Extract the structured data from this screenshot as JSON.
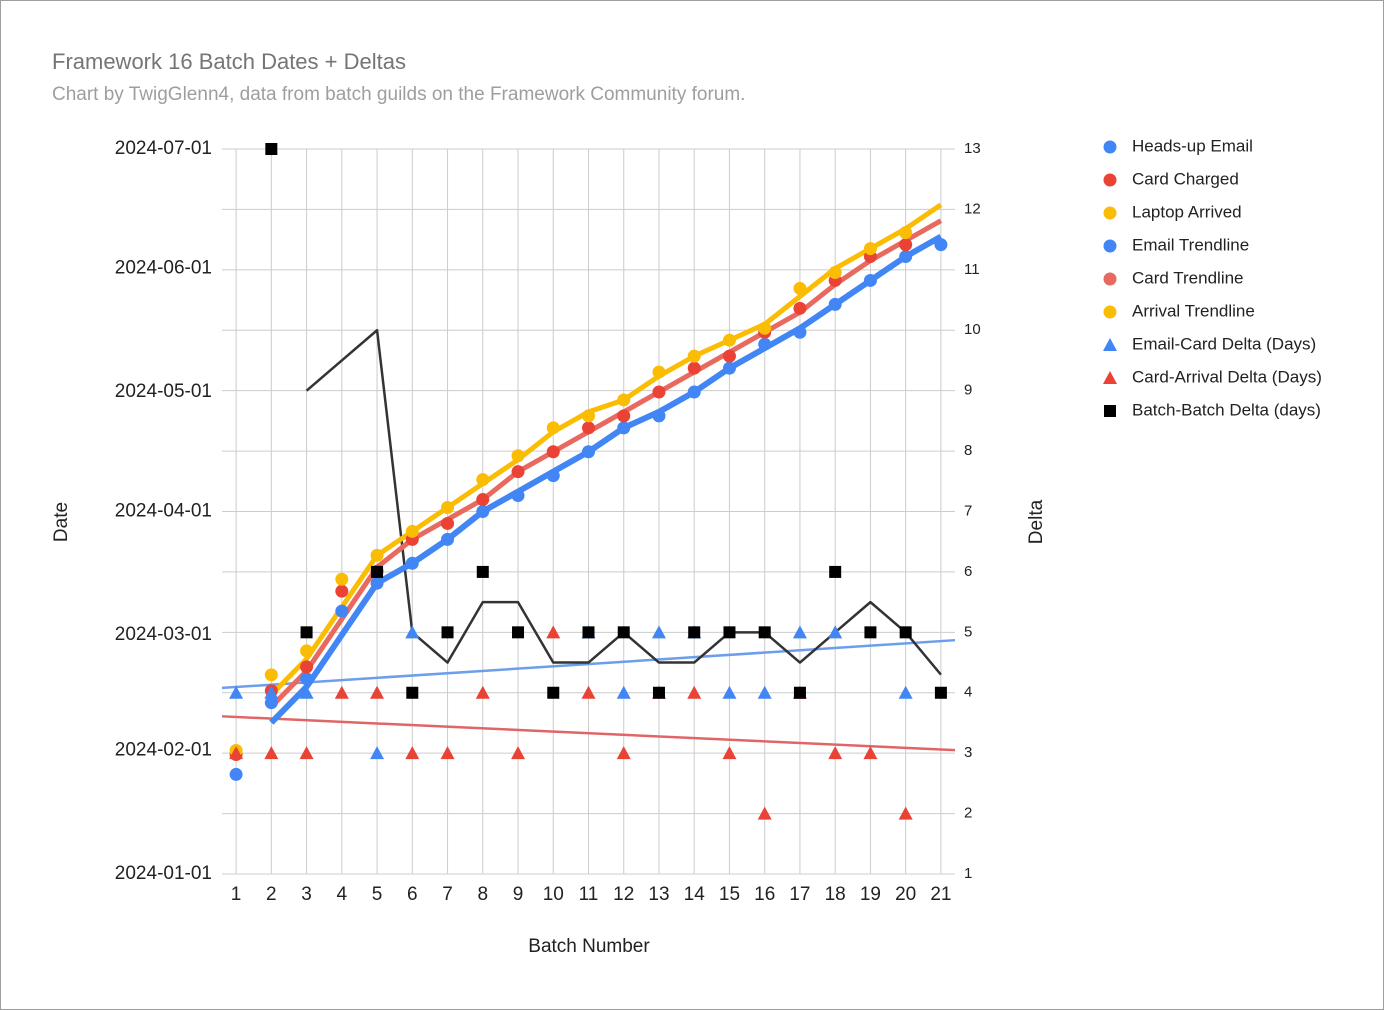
{
  "chart_data": {
    "type": "combo",
    "title": "Framework 16 Batch Dates + Deltas",
    "subtitle": "Chart by TwigGlenn4, data from batch guilds on the Framework Community forum.",
    "x_label": "Batch Number",
    "y_label": "Date",
    "y2_label": "Delta",
    "x": [
      1,
      2,
      3,
      4,
      5,
      6,
      7,
      8,
      9,
      10,
      11,
      12,
      13,
      14,
      15,
      16,
      17,
      18,
      19,
      20,
      21
    ],
    "xlim": [
      0.6,
      21.4
    ],
    "xticks": [
      1,
      2,
      3,
      4,
      5,
      6,
      7,
      8,
      9,
      10,
      11,
      12,
      13,
      14,
      15,
      16,
      17,
      18,
      19,
      20,
      21
    ],
    "ylim": [
      "2024-01-01",
      "2024-07-01"
    ],
    "yticks": [
      "2024-01-01",
      "2024-02-01",
      "2024-03-01",
      "2024-04-01",
      "2024-05-01",
      "2024-06-01",
      "2024-07-01"
    ],
    "y2lim": [
      1,
      13
    ],
    "y2ticks": [
      1,
      2,
      3,
      4,
      5,
      6,
      7,
      8,
      9,
      10,
      11,
      12,
      13
    ],
    "grid": true,
    "legend": "right",
    "series": [
      {
        "name": "Heads-up Email",
        "color": "#4285f4",
        "marker": "circle",
        "axis": "y",
        "values": [
          "2024-01-26",
          "2024-02-13",
          "2024-02-19",
          "2024-03-07",
          "2024-03-14",
          "2024-03-19",
          "2024-03-25",
          "2024-04-01",
          "2024-04-05",
          "2024-04-10",
          "2024-04-16",
          "2024-04-22",
          "2024-04-25",
          "2024-05-01",
          "2024-05-07",
          "2024-05-13",
          "2024-05-16",
          "2024-05-23",
          "2024-05-29",
          "2024-06-04",
          "2024-06-07"
        ]
      },
      {
        "name": "Card Charged",
        "color": "#ea4335",
        "marker": "circle",
        "axis": "y",
        "values": [
          "2024-01-31",
          "2024-02-16",
          "2024-02-22",
          "2024-03-12",
          "2024-03-17",
          "2024-03-25",
          "2024-03-29",
          "2024-04-04",
          "2024-04-11",
          "2024-04-16",
          "2024-04-22",
          "2024-04-25",
          "2024-05-01",
          "2024-05-07",
          "2024-05-10",
          "2024-05-16",
          "2024-05-22",
          "2024-05-29",
          "2024-06-04",
          "2024-06-07",
          null
        ]
      },
      {
        "name": "Laptop Arrived",
        "color": "#fbbc04",
        "marker": "circle",
        "axis": "y",
        "values": [
          "2024-02-01",
          "2024-02-20",
          "2024-02-26",
          "2024-03-15",
          "2024-03-21",
          "2024-03-27",
          "2024-04-02",
          "2024-04-09",
          "2024-04-15",
          "2024-04-22",
          "2024-04-25",
          "2024-04-29",
          "2024-05-06",
          "2024-05-10",
          "2024-05-14",
          "2024-05-17",
          "2024-05-27",
          "2024-05-31",
          "2024-06-06",
          "2024-06-10",
          null
        ]
      },
      {
        "name": "Email Trendline",
        "color": "#4285f4",
        "marker": "line",
        "width": 6,
        "axis": "y",
        "values": [
          null,
          "2024-02-08",
          "2024-02-17",
          "2024-03-01",
          "2024-03-14",
          "2024-03-19",
          "2024-03-25",
          "2024-04-01",
          "2024-04-06",
          "2024-04-11",
          "2024-04-16",
          "2024-04-22",
          "2024-04-26",
          "2024-05-01",
          "2024-05-07",
          "2024-05-12",
          "2024-05-17",
          "2024-05-23",
          "2024-05-29",
          "2024-06-04",
          "2024-06-09"
        ]
      },
      {
        "name": "Card Trendline",
        "color": "#e8695f",
        "marker": "line",
        "width": 5,
        "axis": "y",
        "values": [
          null,
          "2024-02-12",
          "2024-02-21",
          "2024-03-05",
          "2024-03-18",
          "2024-03-25",
          "2024-03-30",
          "2024-04-04",
          "2024-04-11",
          "2024-04-16",
          "2024-04-21",
          "2024-04-26",
          "2024-05-01",
          "2024-05-06",
          "2024-05-11",
          "2024-05-16",
          "2024-05-21",
          "2024-05-28",
          "2024-06-03",
          "2024-06-08",
          "2024-06-13"
        ]
      },
      {
        "name": "Arrival Trendline",
        "color": "#fbbc04",
        "marker": "line",
        "width": 5,
        "axis": "y",
        "values": [
          null,
          "2024-02-15",
          "2024-02-24",
          "2024-03-08",
          "2024-03-21",
          "2024-03-27",
          "2024-04-02",
          "2024-04-08",
          "2024-04-14",
          "2024-04-21",
          "2024-04-26",
          "2024-04-29",
          "2024-05-05",
          "2024-05-10",
          "2024-05-14",
          "2024-05-18",
          "2024-05-25",
          "2024-06-01",
          "2024-06-06",
          "2024-06-11",
          "2024-06-17"
        ]
      },
      {
        "name": "Email-Card Delta (Days)",
        "color": "#4285f4",
        "marker": "triangle",
        "axis": "y2",
        "values": [
          4,
          4,
          4,
          null,
          3,
          5,
          null,
          null,
          null,
          null,
          5,
          4,
          5,
          5,
          4,
          4,
          5,
          5,
          null,
          4,
          null
        ]
      },
      {
        "name": "Card-Arrival Delta (Days)",
        "color": "#ea4335",
        "marker": "triangle",
        "axis": "y2",
        "values": [
          3,
          3,
          3,
          4,
          4,
          3,
          3,
          4,
          3,
          5,
          4,
          3,
          4,
          4,
          3,
          2,
          4,
          3,
          3,
          2,
          null
        ]
      },
      {
        "name": "Batch-Batch Delta (days)",
        "color": "#000000",
        "marker": "square",
        "axis": "y2",
        "values": [
          null,
          13,
          5,
          null,
          6,
          4,
          5,
          6,
          5,
          4,
          5,
          5,
          4,
          5,
          5,
          5,
          4,
          6,
          5,
          5,
          4
        ]
      }
    ],
    "trendlines": [
      {
        "color": "#6d9eeb",
        "axis": "y2",
        "width": 2.5,
        "x": [
          0.6,
          21.4
        ],
        "values": [
          4.08,
          4.87
        ]
      },
      {
        "color": "#e06666",
        "axis": "y2",
        "width": 2.5,
        "x": [
          0.6,
          21.4
        ],
        "values": [
          3.61,
          3.05
        ]
      },
      {
        "color": "#333333",
        "axis": "y2",
        "width": 2.5,
        "x": [
          3,
          4,
          5,
          6,
          7,
          8,
          9,
          10,
          11,
          12,
          13,
          14,
          15,
          16,
          17,
          18,
          19,
          20,
          21
        ],
        "values": [
          9,
          9.5,
          10,
          5,
          4.5,
          5.5,
          5.5,
          4.5,
          4.5,
          5,
          4.5,
          4.5,
          5,
          5,
          4.5,
          5,
          5.5,
          5,
          4.3
        ]
      }
    ]
  }
}
